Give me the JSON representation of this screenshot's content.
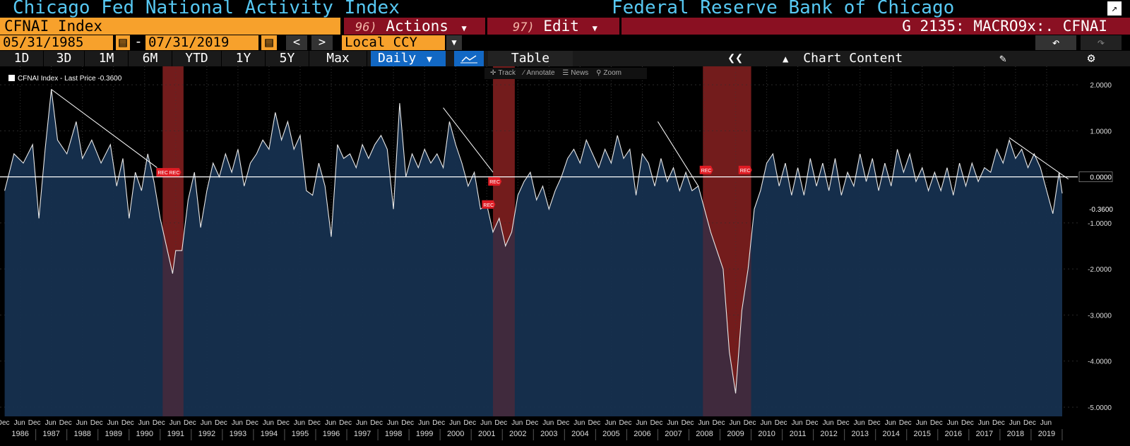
{
  "header": {
    "title_left": "Chicago Fed National Activity Index",
    "title_right": "Federal Reserve Bank of Chicago"
  },
  "toolbar": {
    "ticker": "CFNAI Index",
    "actions_num": "96)",
    "actions_label": "Actions",
    "edit_num": "97)",
    "edit_label": "Edit",
    "function_code": "G 2135: MACRO9x:. CFNAI"
  },
  "range": {
    "start_date": "05/31/1985",
    "end_date": "07/31/2019",
    "separator": "-",
    "prev": "<",
    "next": ">",
    "currency": "Local CCY"
  },
  "timeframes": [
    "1D",
    "3D",
    "1M",
    "6M",
    "YTD",
    "1Y",
    "5Y",
    "Max"
  ],
  "periodicity": "Daily",
  "tabs": {
    "table": "Table",
    "chart_content": "Chart Content"
  },
  "chart_tools": [
    "Track",
    "Annotate",
    "News",
    "Zoom"
  ],
  "legend": {
    "label": "CFNAI Index - Last Price -0.3600"
  },
  "colors": {
    "title": "#57c8f2",
    "ticker_bg": "#f7a12c",
    "menu_bg": "#8a1022",
    "area": "#16304f",
    "recession": "#8a2222",
    "active_tab": "#1268c4"
  },
  "chart_data": {
    "type": "area",
    "series": [
      {
        "name": "CFNAI Index",
        "last_price": -0.36
      }
    ],
    "ylim": [
      -5.2,
      2.4
    ],
    "y_ticks": [
      "2.0000",
      "1.0000",
      "0.0000",
      "-1.0000",
      "-2.0000",
      "-3.0000",
      "-4.0000",
      "-5.0000"
    ],
    "last_value_label": "-0.3600",
    "x_years": [
      "1986",
      "1987",
      "1988",
      "1989",
      "1990",
      "1991",
      "1992",
      "1993",
      "1994",
      "1995",
      "1996",
      "1997",
      "1998",
      "1999",
      "2000",
      "2001",
      "2002",
      "2003",
      "2004",
      "2005",
      "2006",
      "2007",
      "2008",
      "2009",
      "2010",
      "2011",
      "2012",
      "2013",
      "2014",
      "2015",
      "2016",
      "2017",
      "2018",
      "2019"
    ],
    "x_month_labels": [
      "Dec",
      "Jun"
    ],
    "recessions": [
      {
        "start": 1990.58,
        "end": 1991.25
      },
      {
        "start": 2001.2,
        "end": 2001.9
      },
      {
        "start": 2007.95,
        "end": 2009.5
      }
    ],
    "recession_marker": "REC",
    "points": [
      [
        1985.5,
        -0.3
      ],
      [
        1985.8,
        0.5
      ],
      [
        1986.1,
        0.3
      ],
      [
        1986.4,
        0.7
      ],
      [
        1986.6,
        -0.9
      ],
      [
        1986.8,
        0.6
      ],
      [
        1987.0,
        1.9
      ],
      [
        1987.2,
        0.8
      ],
      [
        1987.5,
        0.5
      ],
      [
        1987.8,
        1.2
      ],
      [
        1988.0,
        0.4
      ],
      [
        1988.3,
        0.8
      ],
      [
        1988.6,
        0.3
      ],
      [
        1988.9,
        0.7
      ],
      [
        1989.1,
        -0.2
      ],
      [
        1989.3,
        0.4
      ],
      [
        1989.5,
        -0.9
      ],
      [
        1989.7,
        0.1
      ],
      [
        1989.9,
        -0.3
      ],
      [
        1990.1,
        0.5
      ],
      [
        1990.3,
        -0.1
      ],
      [
        1990.5,
        -0.9
      ],
      [
        1990.7,
        -1.5
      ],
      [
        1990.9,
        -2.1
      ],
      [
        1991.0,
        -1.6
      ],
      [
        1991.2,
        -1.6
      ],
      [
        1991.4,
        -0.5
      ],
      [
        1991.6,
        0.1
      ],
      [
        1991.8,
        -1.1
      ],
      [
        1992.0,
        -0.3
      ],
      [
        1992.2,
        0.3
      ],
      [
        1992.4,
        0.0
      ],
      [
        1992.6,
        0.5
      ],
      [
        1992.8,
        0.1
      ],
      [
        1993.0,
        0.6
      ],
      [
        1993.2,
        -0.2
      ],
      [
        1993.4,
        0.3
      ],
      [
        1993.6,
        0.5
      ],
      [
        1993.8,
        0.8
      ],
      [
        1994.0,
        0.6
      ],
      [
        1994.2,
        1.4
      ],
      [
        1994.4,
        0.8
      ],
      [
        1994.6,
        1.2
      ],
      [
        1994.8,
        0.6
      ],
      [
        1995.0,
        0.9
      ],
      [
        1995.2,
        -0.3
      ],
      [
        1995.4,
        -0.4
      ],
      [
        1995.6,
        0.3
      ],
      [
        1995.8,
        -0.2
      ],
      [
        1996.0,
        -1.3
      ],
      [
        1996.2,
        0.7
      ],
      [
        1996.4,
        0.4
      ],
      [
        1996.6,
        0.5
      ],
      [
        1996.8,
        0.2
      ],
      [
        1997.0,
        0.7
      ],
      [
        1997.2,
        0.4
      ],
      [
        1997.4,
        0.7
      ],
      [
        1997.6,
        0.9
      ],
      [
        1997.8,
        0.6
      ],
      [
        1998.0,
        -0.7
      ],
      [
        1998.2,
        1.6
      ],
      [
        1998.4,
        0.0
      ],
      [
        1998.6,
        0.5
      ],
      [
        1998.8,
        0.2
      ],
      [
        1999.0,
        0.6
      ],
      [
        1999.2,
        0.3
      ],
      [
        1999.4,
        0.5
      ],
      [
        1999.6,
        0.2
      ],
      [
        1999.8,
        1.2
      ],
      [
        2000.0,
        0.7
      ],
      [
        2000.2,
        0.3
      ],
      [
        2000.4,
        -0.2
      ],
      [
        2000.6,
        0.1
      ],
      [
        2000.8,
        -0.7
      ],
      [
        2001.0,
        -0.6
      ],
      [
        2001.2,
        -1.2
      ],
      [
        2001.4,
        -0.9
      ],
      [
        2001.6,
        -1.5
      ],
      [
        2001.8,
        -1.2
      ],
      [
        2002.0,
        -0.4
      ],
      [
        2002.2,
        -0.1
      ],
      [
        2002.4,
        0.1
      ],
      [
        2002.6,
        -0.5
      ],
      [
        2002.8,
        -0.2
      ],
      [
        2003.0,
        -0.7
      ],
      [
        2003.2,
        -0.3
      ],
      [
        2003.4,
        0.0
      ],
      [
        2003.6,
        0.4
      ],
      [
        2003.8,
        0.6
      ],
      [
        2004.0,
        0.3
      ],
      [
        2004.2,
        0.8
      ],
      [
        2004.4,
        0.5
      ],
      [
        2004.6,
        0.2
      ],
      [
        2004.8,
        0.6
      ],
      [
        2005.0,
        0.3
      ],
      [
        2005.2,
        0.9
      ],
      [
        2005.4,
        0.4
      ],
      [
        2005.6,
        0.6
      ],
      [
        2005.8,
        -0.4
      ],
      [
        2006.0,
        0.5
      ],
      [
        2006.2,
        0.3
      ],
      [
        2006.4,
        -0.2
      ],
      [
        2006.6,
        0.4
      ],
      [
        2006.8,
        -0.1
      ],
      [
        2007.0,
        0.2
      ],
      [
        2007.2,
        -0.3
      ],
      [
        2007.4,
        0.1
      ],
      [
        2007.6,
        -0.3
      ],
      [
        2007.8,
        -0.2
      ],
      [
        2008.0,
        -0.7
      ],
      [
        2008.2,
        -1.2
      ],
      [
        2008.4,
        -1.6
      ],
      [
        2008.6,
        -2.0
      ],
      [
        2008.8,
        -3.8
      ],
      [
        2009.0,
        -4.7
      ],
      [
        2009.2,
        -2.9
      ],
      [
        2009.4,
        -2.0
      ],
      [
        2009.6,
        -0.7
      ],
      [
        2009.8,
        -0.3
      ],
      [
        2010.0,
        0.3
      ],
      [
        2010.2,
        0.5
      ],
      [
        2010.4,
        -0.2
      ],
      [
        2010.6,
        0.3
      ],
      [
        2010.8,
        -0.4
      ],
      [
        2011.0,
        0.2
      ],
      [
        2011.2,
        -0.4
      ],
      [
        2011.4,
        0.4
      ],
      [
        2011.6,
        -0.2
      ],
      [
        2011.8,
        0.3
      ],
      [
        2012.0,
        -0.3
      ],
      [
        2012.2,
        0.4
      ],
      [
        2012.4,
        -0.4
      ],
      [
        2012.6,
        0.1
      ],
      [
        2012.8,
        -0.2
      ],
      [
        2013.0,
        0.5
      ],
      [
        2013.2,
        -0.1
      ],
      [
        2013.4,
        0.4
      ],
      [
        2013.6,
        -0.3
      ],
      [
        2013.8,
        0.3
      ],
      [
        2014.0,
        -0.2
      ],
      [
        2014.2,
        0.6
      ],
      [
        2014.4,
        0.1
      ],
      [
        2014.6,
        0.5
      ],
      [
        2014.8,
        -0.1
      ],
      [
        2015.0,
        0.2
      ],
      [
        2015.2,
        -0.3
      ],
      [
        2015.4,
        0.1
      ],
      [
        2015.6,
        -0.3
      ],
      [
        2015.8,
        0.2
      ],
      [
        2016.0,
        -0.4
      ],
      [
        2016.2,
        0.3
      ],
      [
        2016.4,
        -0.2
      ],
      [
        2016.6,
        0.3
      ],
      [
        2016.8,
        -0.1
      ],
      [
        2017.0,
        0.2
      ],
      [
        2017.2,
        0.1
      ],
      [
        2017.4,
        0.6
      ],
      [
        2017.6,
        0.3
      ],
      [
        2017.8,
        0.8
      ],
      [
        2018.0,
        0.4
      ],
      [
        2018.2,
        0.6
      ],
      [
        2018.4,
        0.2
      ],
      [
        2018.6,
        0.5
      ],
      [
        2018.8,
        0.2
      ],
      [
        2019.0,
        -0.3
      ],
      [
        2019.2,
        -0.8
      ],
      [
        2019.4,
        0.1
      ],
      [
        2019.5,
        -0.36
      ]
    ]
  }
}
